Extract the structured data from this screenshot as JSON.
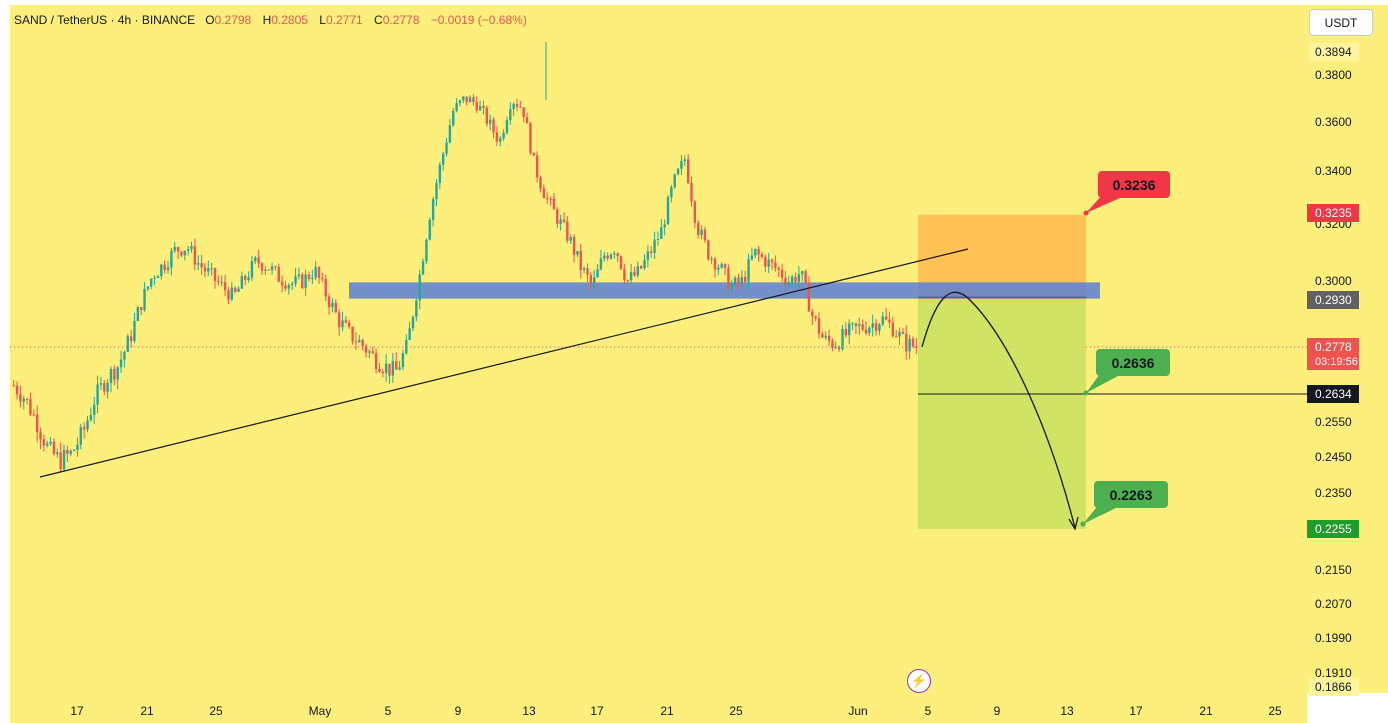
{
  "header": {
    "symbol": "SAND / TetherUS · 4h · BINANCE",
    "o_label": "O",
    "o_value": "0.2798",
    "h_label": "H",
    "h_value": "0.2805",
    "l_label": "L",
    "l_value": "0.2771",
    "c_label": "C",
    "c_value": "0.2778",
    "change": "−0.0019 (−0.68%)"
  },
  "unit_button": "USDT",
  "icons": {
    "flash": "lightning-icon"
  },
  "colors": {
    "background": "#fdef7c",
    "up": "#26a69a",
    "down": "#ef5350",
    "zone": "#5b7fd6",
    "stop_zone": "#ffb347",
    "target_zone": "#c8e05e"
  },
  "chart_data": {
    "type": "candlestick",
    "title": "",
    "ylim": [
      0.1866,
      0.3894
    ],
    "y_ticks": [
      "0.3894",
      "0.3800",
      "0.3600",
      "0.3400",
      "0.3200",
      "0.3000",
      "0.2550",
      "0.2450",
      "0.2350",
      "0.2150",
      "0.2070",
      "0.1990",
      "0.1910",
      "0.1866"
    ],
    "x_ticks": [
      "17",
      "21",
      "25",
      "May",
      "5",
      "9",
      "13",
      "17",
      "21",
      "25",
      "Jun",
      "5",
      "9",
      "13",
      "17",
      "21",
      "25"
    ],
    "price_tags": [
      {
        "value": "0.3235",
        "color": "#f23645"
      },
      {
        "value": "0.2930",
        "color": "#616161"
      },
      {
        "value": "0.2778",
        "sub": "03:19:56",
        "color": "#ef5350"
      },
      {
        "value": "0.2634",
        "color": "#131722"
      },
      {
        "value": "0.2255",
        "color": "#1e9e2a"
      }
    ],
    "annotations": [
      {
        "text": "0.3236",
        "color": "#f23645"
      },
      {
        "text": "0.2636",
        "color": "#4caf50"
      },
      {
        "text": "0.2263",
        "color": "#4caf50"
      }
    ],
    "close_path": [
      0.266,
      0.262,
      0.255,
      0.247,
      0.244,
      0.246,
      0.252,
      0.262,
      0.268,
      0.272,
      0.28,
      0.292,
      0.302,
      0.306,
      0.311,
      0.312,
      0.306,
      0.302,
      0.298,
      0.294,
      0.301,
      0.307,
      0.305,
      0.301,
      0.299,
      0.3,
      0.304,
      0.295,
      0.287,
      0.282,
      0.279,
      0.275,
      0.272,
      0.27,
      0.278,
      0.3,
      0.325,
      0.345,
      0.365,
      0.37,
      0.368,
      0.36,
      0.352,
      0.37,
      0.366,
      0.342,
      0.33,
      0.322,
      0.315,
      0.305,
      0.298,
      0.309,
      0.312,
      0.3,
      0.303,
      0.31,
      0.318,
      0.335,
      0.345,
      0.32,
      0.31,
      0.305,
      0.298,
      0.3,
      0.31,
      0.307,
      0.304,
      0.3,
      0.303,
      0.288,
      0.28,
      0.279,
      0.282,
      0.284,
      0.285,
      0.287,
      0.284,
      0.279,
      0.278
    ]
  }
}
